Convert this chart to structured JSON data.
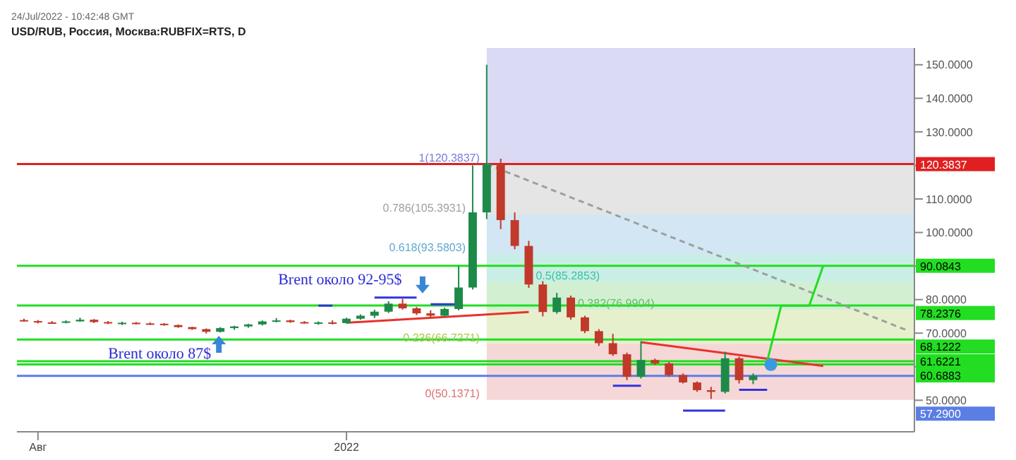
{
  "chart_data": {
    "type": "candlestick",
    "title": "USD/RUB, Россия, Москва:RUBFIX=RTS, D",
    "annotations": [
      "24/Jul/2022 - 10:42:48 GMT",
      "Brent около 87$",
      "Brent около 92-95$"
    ],
    "categories": [
      null,
      "Авг",
      null,
      null,
      null,
      null,
      null,
      null,
      null,
      null,
      null,
      null,
      null,
      null,
      null,
      null,
      null,
      null,
      null,
      null,
      null,
      null,
      null,
      "2022",
      null,
      null,
      null,
      null,
      null,
      null,
      null,
      null,
      null,
      null,
      null,
      null,
      null,
      null,
      null,
      null,
      null,
      null,
      null,
      null,
      null,
      null,
      null,
      null,
      null,
      null,
      null,
      null,
      null,
      null,
      null,
      null,
      null,
      null,
      null,
      null,
      null,
      null,
      null,
      null
    ],
    "ohlc": [
      [
        73.9,
        74.3,
        73.4,
        73.6
      ],
      [
        73.6,
        73.9,
        72.9,
        73.2
      ],
      [
        73.2,
        73.6,
        72.8,
        73.1
      ],
      [
        73.1,
        73.8,
        72.9,
        73.5
      ],
      [
        73.5,
        74.6,
        73.4,
        74
      ],
      [
        74,
        74.2,
        73,
        73.3
      ],
      [
        73.3,
        73.6,
        72.7,
        72.9
      ],
      [
        72.9,
        73.4,
        72.4,
        73.1
      ],
      [
        73.1,
        73.3,
        72.6,
        72.9
      ],
      [
        72.9,
        73.2,
        72.5,
        72.8
      ],
      [
        72.8,
        73,
        72.2,
        72.4
      ],
      [
        72.4,
        72.6,
        71.6,
        71.8
      ],
      [
        71.8,
        71.9,
        71,
        71.2
      ],
      [
        71.2,
        71.4,
        69.9,
        70.4
      ],
      [
        70.4,
        71.8,
        70.2,
        71.5
      ],
      [
        71.5,
        72.2,
        71,
        72
      ],
      [
        72,
        72.8,
        71.6,
        72.6
      ],
      [
        72.6,
        73.8,
        72.3,
        73.5
      ],
      [
        73.5,
        74.5,
        73.2,
        73.8
      ],
      [
        73.8,
        74,
        73.1,
        73.3
      ],
      [
        73.3,
        73.6,
        72.8,
        73
      ],
      [
        73,
        73.5,
        72.5,
        73.2
      ],
      [
        73.2,
        73.8,
        72.6,
        73
      ],
      [
        73,
        74.6,
        72.9,
        74.3
      ],
      [
        74.3,
        75.6,
        74,
        75.2
      ],
      [
        75.2,
        77,
        74.5,
        76.4
      ],
      [
        76.4,
        79.5,
        76,
        78.8
      ],
      [
        78.8,
        80.2,
        77,
        77.4
      ],
      [
        77.4,
        77.8,
        75.4,
        75.9
      ],
      [
        75.9,
        76.8,
        74.6,
        75.2
      ],
      [
        75.2,
        77.6,
        74.9,
        77.2
      ],
      [
        77.2,
        90,
        76.8,
        83.6
      ],
      [
        83.6,
        120,
        83,
        106
      ],
      [
        106,
        150,
        104,
        120.4
      ],
      [
        120.4,
        122,
        101,
        103.7
      ],
      [
        103.7,
        106,
        95,
        96
      ],
      [
        96,
        97.5,
        83.5,
        84.5
      ],
      [
        84.5,
        85.5,
        75,
        76.3
      ],
      [
        76.3,
        82,
        75.8,
        80.6
      ],
      [
        80.6,
        81.2,
        74,
        74.7
      ],
      [
        74.7,
        75.2,
        70,
        70.6
      ],
      [
        70.6,
        71.2,
        66.2,
        67
      ],
      [
        67,
        69.8,
        63.2,
        63.7
      ],
      [
        63.7,
        64.2,
        56,
        57
      ],
      [
        57,
        67.6,
        56.5,
        62
      ],
      [
        62,
        62.4,
        60.5,
        61
      ],
      [
        61,
        61.4,
        57,
        57.5
      ],
      [
        57.5,
        58,
        55,
        55.3
      ],
      [
        55.3,
        55.6,
        52.5,
        53
      ],
      [
        53,
        54,
        50.4,
        52.5
      ],
      [
        52.5,
        64.5,
        52,
        62.5
      ],
      [
        62.5,
        63,
        55,
        56
      ],
      [
        56,
        58,
        54.8,
        57.3
      ],
      null,
      null,
      null,
      null,
      null,
      null,
      null,
      null,
      null,
      null,
      null
    ],
    "colors": [
      "#c0392b",
      "#c0392b",
      "#c0392b",
      "#1e8a4a",
      "#1e8a4a",
      "#c0392b",
      "#c0392b",
      "#1e8a4a",
      "#c0392b",
      "#c0392b",
      "#c0392b",
      "#c0392b",
      "#c0392b",
      "#c0392b",
      "#1e8a4a",
      "#1e8a4a",
      "#1e8a4a",
      "#1e8a4a",
      "#1e8a4a",
      "#c0392b",
      "#c0392b",
      "#1e8a4a",
      "#c0392b",
      "#1e8a4a",
      "#1e8a4a",
      "#1e8a4a",
      "#1e8a4a",
      "#c0392b",
      "#c0392b",
      "#c0392b",
      "#1e8a4a",
      "#1e8a4a",
      "#1e8a4a",
      "#1e8a4a",
      "#c0392b",
      "#c0392b",
      "#c0392b",
      "#c0392b",
      "#1e8a4a",
      "#c0392b",
      "#c0392b",
      "#c0392b",
      "#c0392b",
      "#c0392b",
      "#1e8a4a",
      "#c0392b",
      "#c0392b",
      "#c0392b",
      "#c0392b",
      "#c0392b",
      "#1e8a4a",
      "#c0392b",
      "#1e8a4a",
      null,
      null,
      null,
      null,
      null,
      null,
      null,
      null,
      null,
      null,
      null
    ],
    "series": [
      {
        "type": "line",
        "color": "#e8322b",
        "values": [
          null,
          null,
          null,
          null,
          null,
          null,
          null,
          null,
          null,
          null,
          null,
          null,
          null,
          null,
          null,
          null,
          null,
          null,
          null,
          null,
          null,
          null,
          null,
          73.1,
          null,
          null,
          null,
          null,
          null,
          null,
          null,
          null,
          null,
          null,
          null,
          null,
          76.3,
          null,
          null,
          null,
          null,
          null,
          null,
          null,
          null,
          null,
          null,
          null,
          null,
          null,
          null,
          null,
          null,
          null,
          null,
          null,
          null,
          null,
          null,
          null,
          null,
          null,
          null,
          null
        ]
      },
      {
        "type": "line",
        "color": "#e8322b",
        "values": [
          null,
          null,
          null,
          null,
          null,
          null,
          null,
          null,
          null,
          null,
          null,
          null,
          null,
          null,
          null,
          null,
          null,
          null,
          null,
          null,
          null,
          null,
          null,
          null,
          null,
          null,
          null,
          null,
          null,
          null,
          null,
          null,
          null,
          null,
          null,
          null,
          null,
          null,
          null,
          null,
          null,
          null,
          null,
          null,
          67.3,
          null,
          null,
          null,
          null,
          null,
          null,
          null,
          null,
          null,
          null,
          null,
          null,
          60.2,
          null,
          null,
          null,
          null,
          null,
          null
        ]
      },
      {
        "type": "line",
        "color": "#9e9e9e",
        "line_style": "dashed",
        "values": [
          null,
          null,
          null,
          null,
          null,
          null,
          null,
          null,
          null,
          null,
          null,
          null,
          null,
          null,
          null,
          null,
          null,
          null,
          null,
          null,
          null,
          null,
          null,
          null,
          null,
          null,
          null,
          null,
          null,
          null,
          null,
          null,
          null,
          120.4,
          null,
          null,
          null,
          null,
          null,
          null,
          null,
          null,
          null,
          null,
          null,
          null,
          null,
          null,
          null,
          null,
          null,
          null,
          null,
          null,
          null,
          null,
          null,
          null,
          null,
          null,
          null,
          null,
          null,
          70.8
        ]
      },
      {
        "type": "line",
        "color": "#22dd22",
        "values": [
          null,
          null,
          null,
          null,
          null,
          null,
          null,
          null,
          null,
          null,
          null,
          null,
          null,
          null,
          null,
          null,
          null,
          null,
          null,
          null,
          null,
          null,
          null,
          null,
          null,
          null,
          null,
          null,
          null,
          null,
          null,
          null,
          null,
          null,
          null,
          null,
          null,
          null,
          null,
          null,
          null,
          null,
          null,
          null,
          null,
          null,
          null,
          null,
          null,
          null,
          null,
          null,
          null,
          61.6,
          78.2,
          null,
          78.2,
          90.1,
          null,
          null,
          null,
          null,
          null,
          null
        ]
      },
      {
        "type": "line",
        "color": "#3333dd",
        "values": [
          null,
          null,
          null,
          null,
          null,
          null,
          null,
          null,
          null,
          null,
          null,
          null,
          null,
          null,
          null,
          null,
          null,
          null,
          null,
          null,
          null,
          78.2,
          78.2,
          null,
          null,
          null,
          null,
          null,
          null,
          null,
          null,
          null,
          null,
          null,
          null,
          null,
          null,
          null,
          null,
          null,
          null,
          null,
          null,
          null,
          null,
          null,
          null,
          null,
          null,
          null,
          null,
          null,
          null,
          null,
          null,
          null,
          null,
          null,
          null,
          null,
          null,
          null,
          null,
          null
        ]
      },
      {
        "type": "line",
        "color": "#3333dd",
        "values": [
          null,
          null,
          null,
          null,
          null,
          null,
          null,
          null,
          null,
          null,
          null,
          null,
          null,
          null,
          null,
          null,
          null,
          null,
          null,
          null,
          null,
          null,
          null,
          null,
          null,
          80.6,
          null,
          null,
          80.6,
          null,
          null,
          null,
          null,
          null,
          null,
          null,
          null,
          null,
          null,
          null,
          null,
          null,
          null,
          null,
          null,
          null,
          null,
          null,
          null,
          null,
          null,
          null,
          null,
          null,
          null,
          null,
          null,
          null,
          null,
          null,
          null,
          null,
          null,
          null
        ]
      },
      {
        "type": "line",
        "color": "#3333dd",
        "values": [
          null,
          null,
          null,
          null,
          null,
          null,
          null,
          null,
          null,
          null,
          null,
          null,
          null,
          null,
          null,
          null,
          null,
          null,
          null,
          null,
          null,
          null,
          null,
          null,
          null,
          null,
          null,
          null,
          null,
          78.6,
          null,
          78.6,
          null,
          null,
          null,
          null,
          null,
          null,
          null,
          null,
          null,
          null,
          null,
          null,
          null,
          null,
          null,
          null,
          null,
          null,
          null,
          null,
          null,
          null,
          null,
          null,
          null,
          null,
          null,
          null,
          null,
          null,
          null,
          null
        ]
      },
      {
        "type": "line",
        "color": "#3333dd",
        "values": [
          null,
          null,
          null,
          null,
          null,
          null,
          null,
          null,
          null,
          null,
          null,
          null,
          null,
          null,
          null,
          null,
          null,
          null,
          null,
          null,
          null,
          null,
          null,
          null,
          null,
          null,
          null,
          null,
          null,
          null,
          null,
          null,
          null,
          null,
          null,
          null,
          null,
          null,
          null,
          null,
          null,
          null,
          54.3,
          null,
          54.3,
          null,
          null,
          null,
          null,
          null,
          null,
          null,
          null,
          null,
          null,
          null,
          null,
          null,
          null,
          null,
          null,
          null,
          null,
          null
        ]
      },
      {
        "type": "line",
        "color": "#3333dd",
        "values": [
          null,
          null,
          null,
          null,
          null,
          null,
          null,
          null,
          null,
          null,
          null,
          null,
          null,
          null,
          null,
          null,
          null,
          null,
          null,
          null,
          null,
          null,
          null,
          null,
          null,
          null,
          null,
          null,
          null,
          null,
          null,
          null,
          null,
          null,
          null,
          null,
          null,
          null,
          null,
          null,
          null,
          null,
          null,
          null,
          null,
          null,
          null,
          46.9,
          null,
          null,
          46.9,
          null,
          null,
          null,
          null,
          null,
          null,
          null,
          null,
          null,
          null,
          null,
          null,
          null
        ]
      },
      {
        "type": "line",
        "color": "#3333dd",
        "values": [
          null,
          null,
          null,
          null,
          null,
          null,
          null,
          null,
          null,
          null,
          null,
          null,
          null,
          null,
          null,
          null,
          null,
          null,
          null,
          null,
          null,
          null,
          null,
          null,
          null,
          null,
          null,
          null,
          null,
          null,
          null,
          null,
          null,
          null,
          null,
          null,
          null,
          null,
          null,
          null,
          null,
          null,
          null,
          null,
          null,
          null,
          null,
          null,
          null,
          null,
          null,
          53.1,
          null,
          53.1,
          null,
          null,
          null,
          null,
          null,
          null,
          null,
          null,
          null,
          null
        ]
      }
    ],
    "bands": [
      {
        "axis": "y",
        "from": 120.3837,
        "to": 155,
        "label": "1(120.3837)",
        "color": "#7b7bdb"
      },
      {
        "axis": "y",
        "from": 105.3931,
        "to": 120.3837,
        "label": "0.786(105.3931)",
        "color": "#a0a0a0"
      },
      {
        "axis": "y",
        "from": 93.5803,
        "to": 105.3931,
        "label": "0.618(93.5803)",
        "color": "#5fa8d3"
      },
      {
        "axis": "y",
        "from": 85.2853,
        "to": 93.5803,
        "label": "0.5(85.2853)",
        "color": "#3cc3a0"
      },
      {
        "axis": "y",
        "from": 76.9904,
        "to": 85.2853,
        "label": "0.382(76.9904)",
        "color": "#5cc45c"
      },
      {
        "axis": "y",
        "from": 66.7271,
        "to": 76.9904,
        "label": "0.236(66.7271)",
        "color": "#a8c84a"
      },
      {
        "axis": "y",
        "from": 50.1371,
        "to": 66.7271,
        "label": "0(50.1371)",
        "color": "#e07070"
      }
    ],
    "ref_lines": [
      {
        "axis": "y",
        "value": 120.3837,
        "label": "120.3837",
        "color": "#e02020"
      },
      {
        "axis": "y",
        "value": 90.0843,
        "label": "90.0843",
        "color": "#22dd22"
      },
      {
        "axis": "y",
        "value": 78.2376,
        "label": "78.2376",
        "color": "#22dd22"
      },
      {
        "axis": "y",
        "value": 68.1222,
        "label": "68.1222",
        "color": "#22dd22"
      },
      {
        "axis": "y",
        "value": 61.6221,
        "label": "61.6221",
        "color": "#22dd22"
      },
      {
        "axis": "y",
        "value": 60.6883,
        "label": "60.6883",
        "color": "#22dd22"
      },
      {
        "axis": "y",
        "value": 57.29,
        "label": "57.2900",
        "color": "#5b7ee5"
      }
    ],
    "ylim": [
      40.6,
      155
    ],
    "yticks": [
      {
        "value": 50,
        "label": "50.0000"
      },
      {
        "value": 60,
        "label": null
      },
      {
        "value": 70,
        "label": "70.0000"
      },
      {
        "value": 80,
        "label": "80.0000"
      },
      {
        "value": 90,
        "label": null
      },
      {
        "value": 100,
        "label": "100.0000"
      },
      {
        "value": 110,
        "label": "110.0000"
      },
      {
        "value": 120,
        "label": null
      },
      {
        "value": 130,
        "label": "130.0000"
      },
      {
        "value": 140,
        "label": "140.0000"
      },
      {
        "value": 150,
        "label": "150.0000"
      }
    ]
  }
}
